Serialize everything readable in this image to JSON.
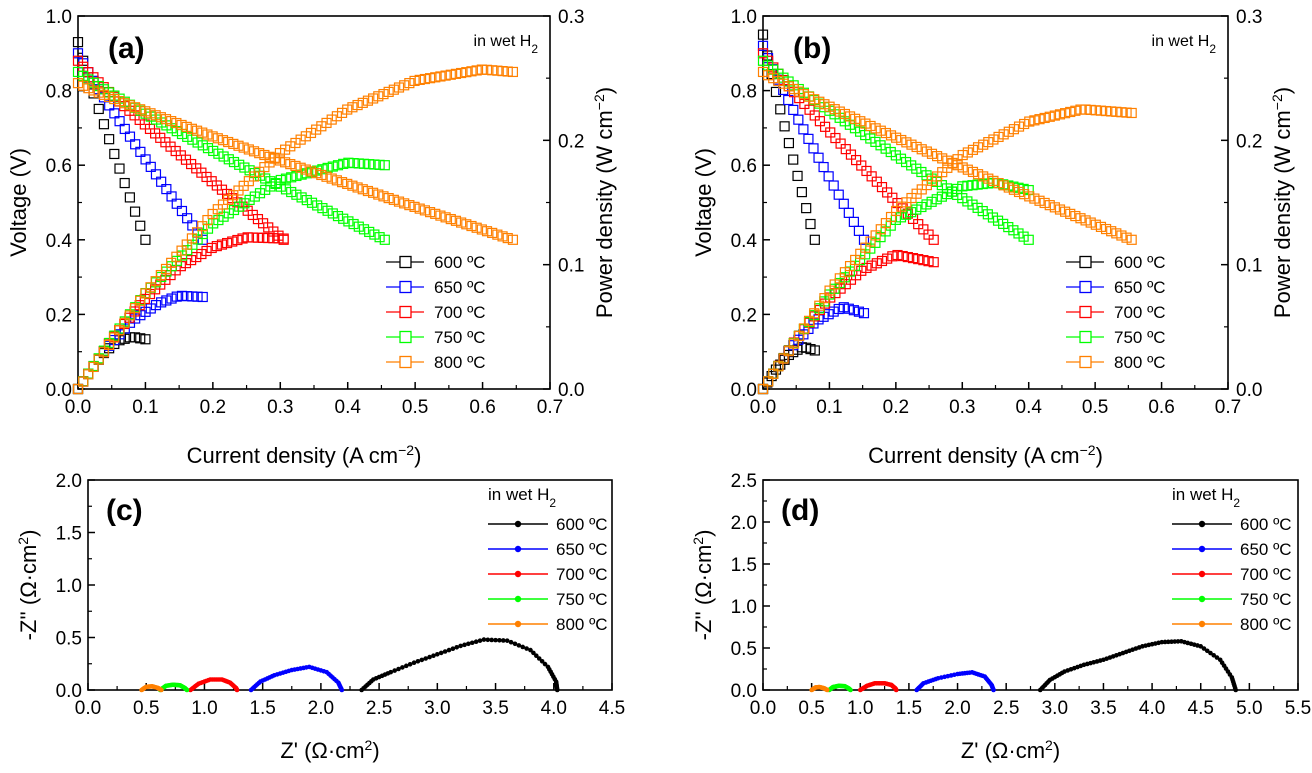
{
  "chart_data": [
    {
      "id": "a",
      "type": "scatter",
      "panel_label": "(a)",
      "annotation": "in wet H",
      "annotation_sub": "2",
      "xlabel": "Current density (A cm",
      "xlabel_sup": "−2",
      "xlabel_end": ")",
      "ylabel": "Voltage (V)",
      "y2label": "Power density (W cm",
      "y2label_sup": "−2",
      "y2label_end": ")",
      "xlim": [
        0,
        0.7
      ],
      "ylim": [
        0,
        1.0
      ],
      "y2lim": [
        0,
        0.3
      ],
      "xticks": [
        "0.0",
        "0.1",
        "0.2",
        "0.3",
        "0.4",
        "0.5",
        "0.6",
        "0.7"
      ],
      "yticks": [
        "0.0",
        "0.2",
        "0.4",
        "0.6",
        "0.8",
        "1.0"
      ],
      "y2ticks": [
        "0.0",
        "0.1",
        "0.2",
        "0.3"
      ],
      "legend_position": "bottom-right",
      "grid": false,
      "series": [
        {
          "name": "600 ºC",
          "color": "#000000",
          "voc": 0.93,
          "v_end": 0.4,
          "j_end": 0.1,
          "power": [
            [
              0,
              0
            ],
            [
              0.02,
              0.016
            ],
            [
              0.04,
              0.03
            ],
            [
              0.06,
              0.039
            ],
            [
              0.08,
              0.042
            ],
            [
              0.1,
              0.04
            ]
          ]
        },
        {
          "name": "650 ºC",
          "color": "#0000ff",
          "voc": 0.9,
          "v_end": 0.4,
          "j_end": 0.185,
          "power": [
            [
              0,
              0
            ],
            [
              0.04,
              0.031
            ],
            [
              0.08,
              0.055
            ],
            [
              0.12,
              0.069
            ],
            [
              0.15,
              0.075
            ],
            [
              0.185,
              0.074
            ]
          ]
        },
        {
          "name": "700 ºC",
          "color": "#ff0000",
          "voc": 0.88,
          "v_end": 0.4,
          "j_end": 0.305,
          "power": [
            [
              0,
              0
            ],
            [
              0.05,
              0.04
            ],
            [
              0.1,
              0.073
            ],
            [
              0.15,
              0.098
            ],
            [
              0.2,
              0.114
            ],
            [
              0.25,
              0.122
            ],
            [
              0.305,
              0.121
            ]
          ]
        },
        {
          "name": "750 ºC",
          "color": "#00ff00",
          "voc": 0.85,
          "v_end": 0.4,
          "j_end": 0.455,
          "power": [
            [
              0,
              0
            ],
            [
              0.05,
              0.04
            ],
            [
              0.1,
              0.077
            ],
            [
              0.2,
              0.133
            ],
            [
              0.3,
              0.168
            ],
            [
              0.4,
              0.182
            ],
            [
              0.455,
              0.18
            ]
          ]
        },
        {
          "name": "800 ºC",
          "color": "#ff8000",
          "voc": 0.82,
          "v_end": 0.4,
          "j_end": 0.645,
          "power": [
            [
              0,
              0
            ],
            [
              0.1,
              0.077
            ],
            [
              0.2,
              0.141
            ],
            [
              0.3,
              0.19
            ],
            [
              0.4,
              0.225
            ],
            [
              0.5,
              0.248
            ],
            [
              0.6,
              0.257
            ],
            [
              0.645,
              0.255
            ]
          ]
        }
      ]
    },
    {
      "id": "b",
      "type": "scatter",
      "panel_label": "(b)",
      "annotation": "in wet H",
      "annotation_sub": "2",
      "xlabel": "Current density (A cm",
      "xlabel_sup": "−2",
      "xlabel_end": ")",
      "ylabel": "Voltage (V)",
      "y2label": "Power density (W cm",
      "y2label_sup": "−2",
      "y2label_end": ")",
      "xlim": [
        0,
        0.7
      ],
      "ylim": [
        0,
        1.0
      ],
      "y2lim": [
        0,
        0.3
      ],
      "xticks": [
        "0.0",
        "0.1",
        "0.2",
        "0.3",
        "0.4",
        "0.5",
        "0.6",
        "0.7"
      ],
      "yticks": [
        "0.0",
        "0.2",
        "0.4",
        "0.6",
        "0.8",
        "1.0"
      ],
      "y2ticks": [
        "0.0",
        "0.1",
        "0.2",
        "0.3"
      ],
      "legend_position": "bottom-right",
      "grid": false,
      "series": [
        {
          "name": "600 ºC",
          "color": "#000000",
          "voc": 0.95,
          "v_end": 0.4,
          "j_end": 0.078,
          "power": [
            [
              0,
              0
            ],
            [
              0.02,
              0.016
            ],
            [
              0.04,
              0.028
            ],
            [
              0.06,
              0.034
            ],
            [
              0.078,
              0.031
            ]
          ]
        },
        {
          "name": "650 ºC",
          "color": "#0000ff",
          "voc": 0.92,
          "v_end": 0.4,
          "j_end": 0.152,
          "power": [
            [
              0,
              0
            ],
            [
              0.04,
              0.032
            ],
            [
              0.08,
              0.055
            ],
            [
              0.12,
              0.066
            ],
            [
              0.152,
              0.061
            ]
          ]
        },
        {
          "name": "700 ºC",
          "color": "#ff0000",
          "voc": 0.9,
          "v_end": 0.4,
          "j_end": 0.257,
          "power": [
            [
              0,
              0
            ],
            [
              0.05,
              0.04
            ],
            [
              0.1,
              0.073
            ],
            [
              0.15,
              0.096
            ],
            [
              0.2,
              0.108
            ],
            [
              0.257,
              0.102
            ]
          ]
        },
        {
          "name": "750 ºC",
          "color": "#00ff00",
          "voc": 0.88,
          "v_end": 0.4,
          "j_end": 0.4,
          "power": [
            [
              0,
              0
            ],
            [
              0.05,
              0.04
            ],
            [
              0.1,
              0.076
            ],
            [
              0.2,
              0.136
            ],
            [
              0.3,
              0.163
            ],
            [
              0.35,
              0.166
            ],
            [
              0.4,
              0.16
            ]
          ]
        },
        {
          "name": "800 ºC",
          "color": "#ff8000",
          "voc": 0.85,
          "v_end": 0.4,
          "j_end": 0.555,
          "power": [
            [
              0,
              0
            ],
            [
              0.1,
              0.079
            ],
            [
              0.2,
              0.143
            ],
            [
              0.3,
              0.188
            ],
            [
              0.4,
              0.215
            ],
            [
              0.48,
              0.225
            ],
            [
              0.555,
              0.222
            ]
          ]
        }
      ]
    },
    {
      "id": "c",
      "type": "line",
      "panel_label": "(c)",
      "legend_title": "in wet H",
      "legend_title_sub": "2",
      "xlabel": "Z' (Ω·cm",
      "xlabel_sup": "2",
      "xlabel_end": ")",
      "ylabel": "-Z'' (Ω·cm",
      "ylabel_sup": "2",
      "ylabel_end": ")",
      "xlim": [
        0,
        4.5
      ],
      "ylim": [
        0,
        2.0
      ],
      "xticks": [
        "0.0",
        "0.5",
        "1.0",
        "1.5",
        "2.0",
        "2.5",
        "3.0",
        "3.5",
        "4.0",
        "4.5"
      ],
      "yticks": [
        "0.0",
        "0.5",
        "1.0",
        "1.5",
        "2.0"
      ],
      "legend_position": "top-right",
      "grid": false,
      "series": [
        {
          "name": "600 ºC",
          "color": "#000000",
          "x": [
            2.35,
            2.45,
            2.6,
            2.8,
            3.0,
            3.2,
            3.4,
            3.6,
            3.8,
            3.95,
            4.02,
            4.03
          ],
          "y": [
            0.0,
            0.1,
            0.17,
            0.26,
            0.34,
            0.42,
            0.48,
            0.47,
            0.38,
            0.22,
            0.08,
            0.0
          ]
        },
        {
          "name": "650 ºC",
          "color": "#0000ff",
          "x": [
            1.4,
            1.48,
            1.6,
            1.75,
            1.9,
            2.05,
            2.15,
            2.18
          ],
          "y": [
            0.0,
            0.08,
            0.14,
            0.19,
            0.22,
            0.17,
            0.07,
            0.0
          ]
        },
        {
          "name": "700 ºC",
          "color": "#ff0000",
          "x": [
            0.88,
            0.95,
            1.05,
            1.15,
            1.22,
            1.27,
            1.28
          ],
          "y": [
            0.0,
            0.06,
            0.1,
            0.1,
            0.07,
            0.02,
            0.0
          ]
        },
        {
          "name": "750 ºC",
          "color": "#00ff00",
          "x": [
            0.62,
            0.67,
            0.73,
            0.79,
            0.83,
            0.85
          ],
          "y": [
            0.0,
            0.04,
            0.05,
            0.045,
            0.02,
            0.0
          ]
        },
        {
          "name": "800 ºC",
          "color": "#ff8000",
          "x": [
            0.46,
            0.5,
            0.55,
            0.6,
            0.63
          ],
          "y": [
            0.0,
            0.03,
            0.035,
            0.02,
            0.0
          ]
        }
      ]
    },
    {
      "id": "d",
      "type": "line",
      "panel_label": "(d)",
      "legend_title": "in wet H",
      "legend_title_sub": "2",
      "xlabel": "Z' (Ω·cm",
      "xlabel_sup": "2",
      "xlabel_end": ")",
      "ylabel": "-Z'' (Ω·cm",
      "ylabel_sup": "2",
      "ylabel_end": ")",
      "xlim": [
        0,
        5.5
      ],
      "ylim": [
        0,
        2.5
      ],
      "xticks": [
        "0.0",
        "0.5",
        "1.0",
        "1.5",
        "2.0",
        "2.5",
        "3.0",
        "3.5",
        "4.0",
        "4.5",
        "5.0",
        "5.5"
      ],
      "yticks": [
        "0.0",
        "0.5",
        "1.0",
        "1.5",
        "2.0",
        "2.5"
      ],
      "legend_position": "top-right",
      "grid": false,
      "series": [
        {
          "name": "600 ºC",
          "color": "#000000",
          "x": [
            2.85,
            2.95,
            3.1,
            3.3,
            3.5,
            3.7,
            3.9,
            4.1,
            4.3,
            4.5,
            4.7,
            4.82,
            4.86
          ],
          "y": [
            0.0,
            0.12,
            0.22,
            0.3,
            0.36,
            0.44,
            0.52,
            0.57,
            0.58,
            0.52,
            0.36,
            0.15,
            0.0
          ]
        },
        {
          "name": "650 ºC",
          "color": "#0000ff",
          "x": [
            1.58,
            1.65,
            1.8,
            2.0,
            2.15,
            2.28,
            2.35,
            2.37
          ],
          "y": [
            0.0,
            0.08,
            0.14,
            0.19,
            0.21,
            0.16,
            0.06,
            0.0
          ]
        },
        {
          "name": "700 ºC",
          "color": "#ff0000",
          "x": [
            1.0,
            1.07,
            1.15,
            1.25,
            1.32,
            1.36,
            1.37
          ],
          "y": [
            0.0,
            0.05,
            0.08,
            0.08,
            0.06,
            0.02,
            0.0
          ]
        },
        {
          "name": "750 ºC",
          "color": "#00ff00",
          "x": [
            0.68,
            0.72,
            0.78,
            0.84,
            0.88,
            0.9
          ],
          "y": [
            0.0,
            0.035,
            0.05,
            0.045,
            0.02,
            0.0
          ]
        },
        {
          "name": "800 ºC",
          "color": "#ff8000",
          "x": [
            0.5,
            0.54,
            0.58,
            0.63,
            0.66
          ],
          "y": [
            0.0,
            0.03,
            0.035,
            0.02,
            0.0
          ]
        }
      ]
    }
  ]
}
